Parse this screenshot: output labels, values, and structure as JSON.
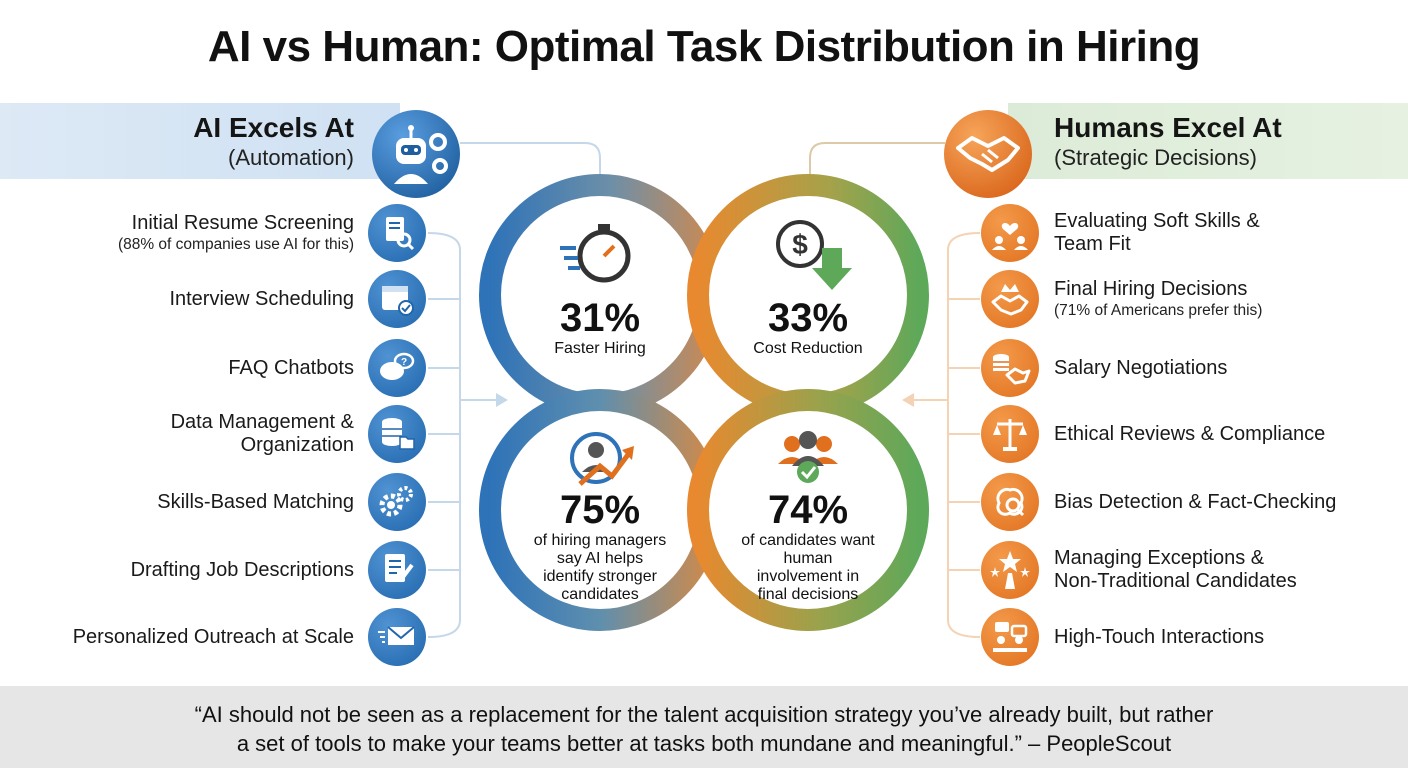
{
  "title": "AI vs Human: Optimal Task Distribution in Hiring",
  "left": {
    "heading": "AI Excels At",
    "subheading": "(Automation)",
    "icon": "robot-gears-icon",
    "color": "#2166ac",
    "items": [
      {
        "label": "Initial Resume Screening",
        "note": "(88% of companies use AI for this)",
        "icon": "resume-search-icon"
      },
      {
        "label": "Interview Scheduling",
        "note": "",
        "icon": "calendar-check-icon"
      },
      {
        "label": "FAQ Chatbots",
        "note": "",
        "icon": "chat-bubbles-icon"
      },
      {
        "label": "Data Management &",
        "label2": "Organization",
        "note": "",
        "icon": "database-folder-icon"
      },
      {
        "label": "Skills-Based Matching",
        "note": "",
        "icon": "gears-icon"
      },
      {
        "label": "Drafting Job Descriptions",
        "note": "",
        "icon": "document-pen-icon"
      },
      {
        "label": "Personalized Outreach at Scale",
        "note": "",
        "icon": "envelope-icon"
      }
    ]
  },
  "right": {
    "heading": "Humans Excel At",
    "subheading": "(Strategic Decisions)",
    "icon": "handshake-icon",
    "color": "#e0701e",
    "items": [
      {
        "label": "Evaluating Soft Skills &",
        "label2": "Team Fit",
        "note": "",
        "icon": "team-heart-icon"
      },
      {
        "label": "Final Hiring Decisions",
        "note": "(71% of Americans prefer this)",
        "icon": "crown-handshake-icon"
      },
      {
        "label": "Salary Negotiations",
        "note": "",
        "icon": "coins-handshake-icon"
      },
      {
        "label": "Ethical Reviews & Compliance",
        "note": "",
        "icon": "scales-icon"
      },
      {
        "label": "Bias Detection & Fact-Checking",
        "note": "",
        "icon": "brain-magnifier-icon"
      },
      {
        "label": "Managing Exceptions &",
        "label2": "Non-Traditional Candidates",
        "note": "",
        "icon": "star-road-icon"
      },
      {
        "label": "High-Touch Interactions",
        "note": "",
        "icon": "meeting-icon"
      }
    ]
  },
  "stats": [
    {
      "value": "31%",
      "label": "Faster Hiring",
      "icon": "stopwatch-icon"
    },
    {
      "value": "33%",
      "label": "Cost Reduction",
      "icon": "dollar-down-icon"
    },
    {
      "value": "75%",
      "label1": "of hiring managers",
      "label2": "say AI helps",
      "label3": "identify stronger",
      "label4": "candidates",
      "icon": "person-growth-icon"
    },
    {
      "value": "74%",
      "label1": "of candidates want",
      "label2": "human",
      "label3": "involvement in",
      "label4": "final decisions",
      "icon": "group-check-icon"
    }
  ],
  "quote": {
    "line1": "“AI should not be seen as a replacement for the talent acquisition strategy you’ve already built, but rather",
    "line2": "a set of tools to make your teams better at tasks both mundane and meaningful.” – PeopleScout"
  }
}
